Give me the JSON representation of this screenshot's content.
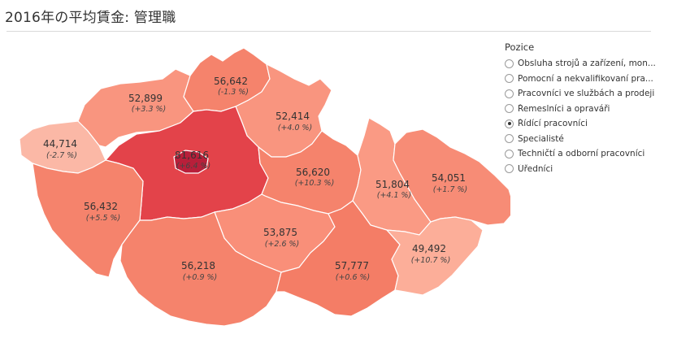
{
  "title": "2016年の平均賃金: 管理職",
  "legend": {
    "title": "Pozice",
    "options": [
      {
        "label": "Obsluha strojů a zařízení, mon...",
        "selected": false
      },
      {
        "label": "Pomocní a nekvalifikovaní pra...",
        "selected": false
      },
      {
        "label": "Pracovníci ve službách a prodeji",
        "selected": false
      },
      {
        "label": "Řemeslníci a opraváři",
        "selected": false
      },
      {
        "label": "Řídící pracovníci",
        "selected": true
      },
      {
        "label": "Specialisté",
        "selected": false
      },
      {
        "label": "Techničtí a odborní pracovníci",
        "selected": false
      },
      {
        "label": "Úředníci",
        "selected": false
      }
    ]
  },
  "regions": [
    {
      "id": "karlovarsky",
      "value": "44,714",
      "change": "(-2.7 %)",
      "color": "#fbb8a6"
    },
    {
      "id": "ustecky",
      "value": "52,899",
      "change": "(+3.3 %)",
      "color": "#f9957f"
    },
    {
      "id": "liberecky",
      "value": "56,642",
      "change": "(-1.3 %)",
      "color": "#f5836c"
    },
    {
      "id": "kralovehradecky",
      "value": "52,414",
      "change": "(+4.0 %)",
      "color": "#f9957f"
    },
    {
      "id": "stredocesky",
      "value": "81,616",
      "change": "(+6.4 %)",
      "color": "#e3434a"
    },
    {
      "id": "praha",
      "value": "",
      "change": "",
      "color": "#b81f3a"
    },
    {
      "id": "pardubicky",
      "value": "56,620",
      "change": "(+10.3 %)",
      "color": "#f5836c"
    },
    {
      "id": "plzensky",
      "value": "56,432",
      "change": "(+5.5 %)",
      "color": "#f5836c"
    },
    {
      "id": "olomoucky",
      "value": "51,804",
      "change": "(+4.1 %)",
      "color": "#fa9a84"
    },
    {
      "id": "moravskoslezsky",
      "value": "54,051",
      "change": "(+1.7 %)",
      "color": "#f78c76"
    },
    {
      "id": "vysocina",
      "value": "53,875",
      "change": "(+2.6 %)",
      "color": "#f98f79"
    },
    {
      "id": "jihocesky",
      "value": "56,218",
      "change": "(+0.9 %)",
      "color": "#f5836c"
    },
    {
      "id": "jihomoravsky",
      "value": "57,777",
      "change": "(+0.6 %)",
      "color": "#f47d66"
    },
    {
      "id": "zlinsky",
      "value": "49,492",
      "change": "(+10.7 %)",
      "color": "#fcae99"
    }
  ]
}
